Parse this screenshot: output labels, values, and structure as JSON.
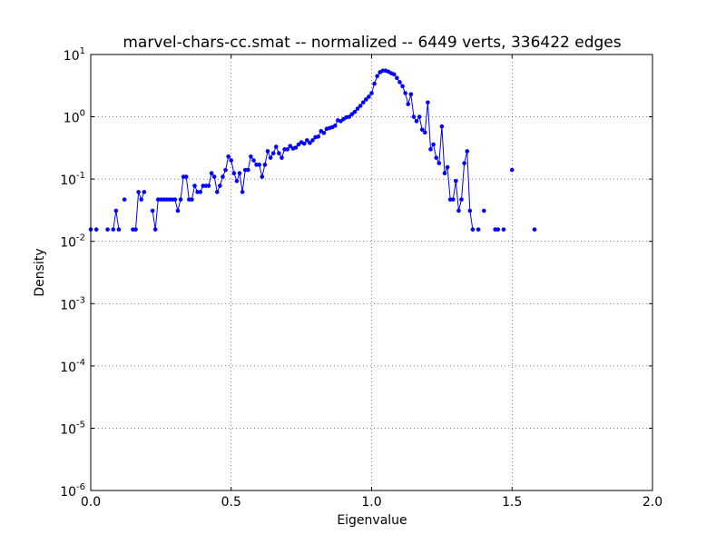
{
  "chart_data": {
    "type": "line",
    "title": "marvel-chars-cc.smat -- normalized -- 6449 verts, 336422 edges",
    "x_label": "Eigenvalue",
    "y_label": "Density",
    "log_y": true,
    "grid": true,
    "xlim": [
      0,
      2
    ],
    "ylim": [
      1e-06,
      10
    ],
    "xticks": [
      {
        "value": 0,
        "label": "0.0"
      },
      0.5,
      {
        "value": 1,
        "label": "1.0"
      },
      1.5,
      {
        "value": 2,
        "label": "2.0"
      }
    ],
    "yticks": [
      {
        "value": 1e-06,
        "label": "10^-6"
      },
      {
        "value": 1e-05,
        "label": "10^-5"
      },
      {
        "value": 0.0001,
        "label": "10^-4"
      },
      {
        "value": 0.001,
        "label": "10^-3"
      },
      {
        "value": 0.01,
        "label": "10^-2"
      },
      {
        "value": 0.1,
        "label": "10^-1"
      },
      {
        "value": 1,
        "label": "10^0"
      },
      {
        "value": 10,
        "label": "10^1"
      }
    ],
    "x": [
      0.0,
      0.01,
      0.02,
      0.03,
      0.04,
      0.05,
      0.06,
      0.07,
      0.08,
      0.09,
      0.1,
      0.11,
      0.12,
      0.13,
      0.14,
      0.15,
      0.16,
      0.17,
      0.18,
      0.19,
      0.2,
      0.21,
      0.22,
      0.23,
      0.24,
      0.25,
      0.26,
      0.27,
      0.28,
      0.29,
      0.3,
      0.31,
      0.32,
      0.33,
      0.34,
      0.35,
      0.36,
      0.37,
      0.38,
      0.39,
      0.4,
      0.41,
      0.42,
      0.43,
      0.44,
      0.45,
      0.46,
      0.47,
      0.48,
      0.49,
      0.5,
      0.51,
      0.52,
      0.53,
      0.54,
      0.55,
      0.56,
      0.57,
      0.58,
      0.59,
      0.6,
      0.61,
      0.62,
      0.63,
      0.64,
      0.65,
      0.66,
      0.67,
      0.68,
      0.69,
      0.7,
      0.71,
      0.72,
      0.73,
      0.74,
      0.75,
      0.76,
      0.77,
      0.78,
      0.79,
      0.8,
      0.81,
      0.82,
      0.83,
      0.84,
      0.85,
      0.86,
      0.87,
      0.88,
      0.89,
      0.9,
      0.91,
      0.92,
      0.93,
      0.94,
      0.95,
      0.96,
      0.97,
      0.98,
      0.99,
      1.0,
      1.01,
      1.02,
      1.03,
      1.04,
      1.05,
      1.06,
      1.07,
      1.08,
      1.09,
      1.1,
      1.11,
      1.12,
      1.13,
      1.14,
      1.15,
      1.16,
      1.17,
      1.18,
      1.19,
      1.2,
      1.21,
      1.22,
      1.23,
      1.24,
      1.25,
      1.26,
      1.27,
      1.28,
      1.29,
      1.3,
      1.31,
      1.32,
      1.33,
      1.34,
      1.35,
      1.36,
      1.37,
      1.38,
      1.39,
      1.4,
      1.41,
      1.42,
      1.43,
      1.44,
      1.45,
      1.46,
      1.47,
      1.48,
      1.49,
      1.5,
      1.51,
      1.52,
      1.53,
      1.54,
      1.55,
      1.56,
      1.57,
      1.58
    ],
    "series": [
      {
        "name": "Density",
        "color": "#0000ff",
        "values": [
          0.0155,
          null,
          0.0155,
          null,
          null,
          null,
          0.0155,
          null,
          0.0155,
          0.031,
          0.0155,
          null,
          0.047,
          null,
          null,
          0.0155,
          0.0155,
          0.062,
          0.047,
          0.062,
          null,
          null,
          0.031,
          0.0155,
          0.047,
          0.047,
          0.047,
          0.047,
          0.047,
          0.047,
          0.047,
          0.031,
          0.047,
          0.109,
          0.109,
          0.047,
          0.047,
          0.078,
          0.062,
          0.062,
          0.078,
          0.078,
          0.078,
          0.124,
          0.109,
          0.062,
          0.078,
          0.109,
          0.14,
          0.23,
          0.2,
          0.124,
          0.093,
          0.124,
          0.062,
          0.14,
          0.14,
          0.23,
          0.2,
          0.17,
          0.17,
          0.109,
          0.17,
          0.28,
          0.22,
          0.26,
          0.33,
          0.26,
          0.22,
          0.3,
          0.3,
          0.34,
          0.31,
          0.32,
          0.36,
          0.39,
          0.37,
          0.42,
          0.38,
          0.42,
          0.47,
          0.48,
          0.59,
          0.55,
          0.64,
          0.66,
          0.68,
          0.72,
          0.88,
          0.85,
          0.92,
          0.98,
          1.0,
          1.1,
          1.2,
          1.35,
          1.5,
          1.7,
          1.9,
          2.1,
          2.4,
          3.4,
          4.5,
          5.2,
          5.5,
          5.5,
          5.3,
          5.0,
          4.8,
          4.2,
          3.6,
          3.1,
          2.4,
          1.6,
          2.3,
          1.0,
          0.85,
          1.0,
          0.62,
          0.56,
          1.7,
          0.3,
          0.36,
          0.22,
          0.18,
          0.7,
          0.124,
          0.155,
          0.047,
          0.047,
          0.093,
          0.031,
          0.047,
          0.18,
          0.28,
          0.031,
          0.0155,
          null,
          0.0155,
          null,
          0.031,
          null,
          null,
          null,
          0.0155,
          0.0155,
          null,
          0.0155,
          null,
          null,
          0.14,
          null,
          null,
          null,
          null,
          null,
          null,
          null,
          0.0155
        ]
      }
    ]
  }
}
